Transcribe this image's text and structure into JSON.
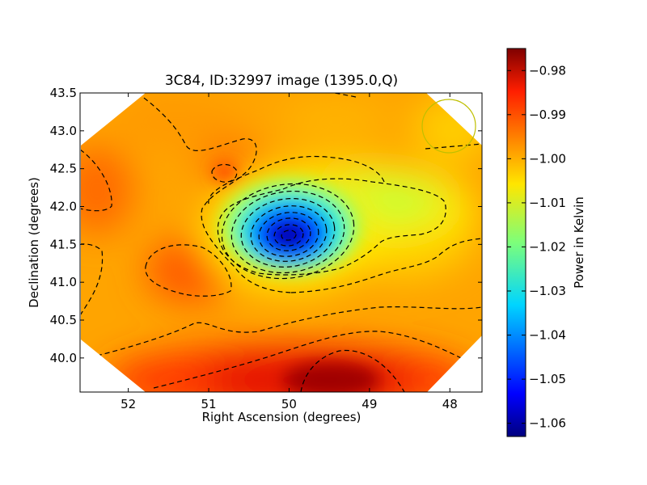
{
  "chart_data": {
    "type": "heatmap",
    "title": "3C84, ID:32997 image (1395.0,Q)",
    "xlabel": "Right Ascension (degrees)",
    "ylabel": "Declination (degrees)",
    "xlim": [
      52.6,
      47.6
    ],
    "ylim": [
      39.55,
      43.5
    ],
    "x_ticks": [
      52,
      51,
      50,
      49,
      48
    ],
    "y_ticks": [
      43.5,
      43.0,
      42.5,
      42.0,
      41.5,
      41.0,
      40.5,
      40.0
    ],
    "x_tick_labels": [
      "52",
      "51",
      "50",
      "49",
      "48"
    ],
    "y_tick_labels": [
      "43.5",
      "43.0",
      "42.5",
      "42.0",
      "41.5",
      "41.0",
      "40.5",
      "40.0"
    ],
    "colorbar": {
      "label": "Power in Kelvin",
      "range": [
        -1.063,
        -0.975
      ],
      "ticks": [
        -0.98,
        -0.99,
        -1.0,
        -1.01,
        -1.02,
        -1.03,
        -1.04,
        -1.05,
        -1.06
      ],
      "tick_labels": [
        "−0.98",
        "−0.99",
        "−1.00",
        "−1.01",
        "−1.02",
        "−1.03",
        "−1.04",
        "−1.05",
        "−1.06"
      ],
      "colormap": "jet"
    },
    "background_level": -0.998,
    "features": [
      {
        "kind": "minimum",
        "ra": 49.85,
        "dec": 41.58,
        "value": -1.063
      },
      {
        "kind": "green-extension",
        "ra": 48.95,
        "dec": 41.95,
        "value": -1.012
      },
      {
        "kind": "maximum",
        "ra": 49.3,
        "dec": 39.7,
        "value": -0.976
      },
      {
        "kind": "red-patch",
        "ra": 51.0,
        "dec": 41.05,
        "value": -0.989
      },
      {
        "kind": "red-patch",
        "ra": 52.45,
        "dec": 42.1,
        "value": -0.988
      },
      {
        "kind": "red-patch",
        "ra": 50.7,
        "dec": 42.45,
        "value": -0.988
      }
    ],
    "contour_style": "dashed black",
    "beam": {
      "ra": 47.95,
      "dec": 43.05,
      "color": "#bfbf00"
    }
  }
}
